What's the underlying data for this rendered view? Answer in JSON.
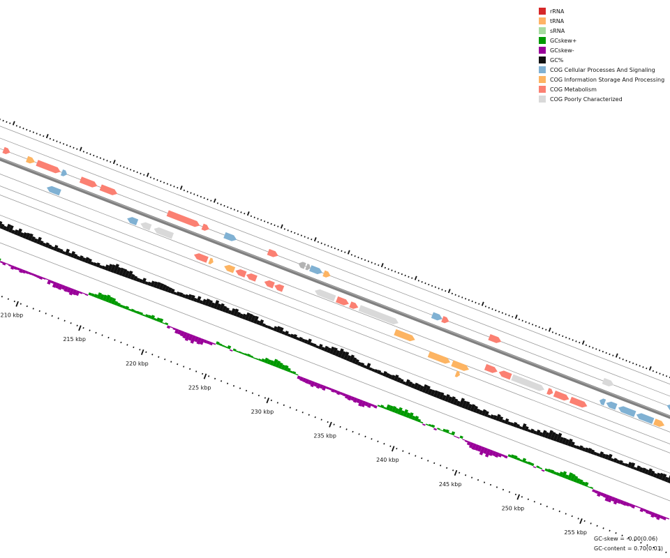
{
  "legend": [
    {
      "label": "rRNA",
      "color": "#d62728"
    },
    {
      "label": "tRNA",
      "color": "#ffb366"
    },
    {
      "label": "sRNA",
      "color": "#a6dba0"
    },
    {
      "label": "GCskew+",
      "color": "#009900"
    },
    {
      "label": "GCskew-",
      "color": "#990099"
    },
    {
      "label": "GC%",
      "color": "#111111"
    },
    {
      "label": "COG Cellular Processes And Signaling",
      "color": "#80b1d3"
    },
    {
      "label": "COG Information Storage And Processing",
      "color": "#fdb462"
    },
    {
      "label": "COG Metabolism",
      "color": "#fb8072"
    },
    {
      "label": "COG Poorly Characterized",
      "color": "#d9d9d9"
    }
  ],
  "stats": {
    "gc_skew": "GC-skew = -0.00(0.06)",
    "gc_content": "GC-content = 0.70(0.03)"
  },
  "ruler": {
    "labels": [
      "210 kbp",
      "215 kbp",
      "220 kbp",
      "225 kbp",
      "230 kbp",
      "235 kbp",
      "240 kbp",
      "245 kbp",
      "250 kbp",
      "255 kbp"
    ]
  },
  "colors": {
    "backbone": "#808080",
    "guide": "#9a9a9a",
    "gc": "#111111",
    "skew_pos": "#009900",
    "skew_neg": "#990099",
    "cog_cellular": "#80b1d3",
    "cog_info": "#fdb462",
    "cog_metab": "#fb8072",
    "cog_poor": "#d9d9d9",
    "other": "#b3b3b3"
  },
  "genes": [
    {
      "pos": 0.0,
      "track": "outer",
      "len": 0.01,
      "cog": "cog_metab",
      "dir": 1
    },
    {
      "pos": 0.035,
      "track": "outer",
      "len": 0.012,
      "cog": "cog_info",
      "dir": 1
    },
    {
      "pos": 0.05,
      "track": "outer",
      "len": 0.035,
      "cog": "cog_metab",
      "dir": 1
    },
    {
      "pos": 0.087,
      "track": "outer",
      "len": 0.008,
      "cog": "cog_cellular",
      "dir": 1
    },
    {
      "pos": 0.075,
      "track": "inner1",
      "len": 0.02,
      "cog": "cog_cellular",
      "dir": -1
    },
    {
      "pos": 0.115,
      "track": "outer",
      "len": 0.025,
      "cog": "cog_metab",
      "dir": 1
    },
    {
      "pos": 0.145,
      "track": "outer",
      "len": 0.025,
      "cog": "cog_metab",
      "dir": 1
    },
    {
      "pos": 0.195,
      "track": "inner1",
      "len": 0.015,
      "cog": "cog_cellular",
      "dir": -1
    },
    {
      "pos": 0.215,
      "track": "inner1",
      "len": 0.015,
      "cog": "cog_poor",
      "dir": -1
    },
    {
      "pos": 0.235,
      "track": "inner1",
      "len": 0.028,
      "cog": "cog_poor",
      "dir": -1
    },
    {
      "pos": 0.245,
      "track": "outer",
      "len": 0.048,
      "cog": "cog_metab",
      "dir": 1
    },
    {
      "pos": 0.297,
      "track": "outer",
      "len": 0.01,
      "cog": "cog_metab",
      "dir": 1
    },
    {
      "pos": 0.3,
      "track": "inner2",
      "len": 0.02,
      "cog": "cog_metab",
      "dir": -1
    },
    {
      "pos": 0.323,
      "track": "inner2",
      "len": 0.006,
      "cog": "cog_info",
      "dir": 1
    },
    {
      "pos": 0.33,
      "track": "outer",
      "len": 0.018,
      "cog": "cog_cellular",
      "dir": 1
    },
    {
      "pos": 0.345,
      "track": "inner2",
      "len": 0.015,
      "cog": "cog_info",
      "dir": -1
    },
    {
      "pos": 0.362,
      "track": "inner2",
      "len": 0.015,
      "cog": "cog_metab",
      "dir": -1
    },
    {
      "pos": 0.378,
      "track": "inner2",
      "len": 0.015,
      "cog": "cog_metab",
      "dir": -1
    },
    {
      "pos": 0.395,
      "track": "outer",
      "len": 0.015,
      "cog": "cog_metab",
      "dir": 1
    },
    {
      "pos": 0.405,
      "track": "inner2",
      "len": 0.014,
      "cog": "cog_metab",
      "dir": -1
    },
    {
      "pos": 0.42,
      "track": "inner2",
      "len": 0.013,
      "cog": "cog_metab",
      "dir": -1
    },
    {
      "pos": 0.44,
      "track": "outer",
      "len": 0.01,
      "cog": "other",
      "dir": -1
    },
    {
      "pos": 0.452,
      "track": "outer",
      "len": 0.006,
      "cog": "other",
      "dir": 1
    },
    {
      "pos": 0.458,
      "track": "outer",
      "len": 0.018,
      "cog": "cog_cellular",
      "dir": 1
    },
    {
      "pos": 0.478,
      "track": "outer",
      "len": 0.01,
      "cog": "cog_info",
      "dir": 1
    },
    {
      "pos": 0.475,
      "track": "inner1",
      "len": 0.03,
      "cog": "cog_poor",
      "dir": -1
    },
    {
      "pos": 0.508,
      "track": "inner1",
      "len": 0.018,
      "cog": "cog_metab",
      "dir": 1
    },
    {
      "pos": 0.528,
      "track": "inner1",
      "len": 0.012,
      "cog": "cog_metab",
      "dir": 1
    },
    {
      "pos": 0.542,
      "track": "inner1",
      "len": 0.058,
      "cog": "cog_poor",
      "dir": 1
    },
    {
      "pos": 0.6,
      "track": "inner2",
      "len": 0.03,
      "cog": "cog_info",
      "dir": 1
    },
    {
      "pos": 0.64,
      "track": "outer",
      "len": 0.015,
      "cog": "cog_cellular",
      "dir": 1
    },
    {
      "pos": 0.655,
      "track": "outer",
      "len": 0.01,
      "cog": "cog_metab",
      "dir": 1
    },
    {
      "pos": 0.655,
      "track": "inner3",
      "len": 0.032,
      "cog": "cog_info",
      "dir": 1
    },
    {
      "pos": 0.69,
      "track": "inner3",
      "len": 0.025,
      "cog": "cog_info",
      "dir": 1
    },
    {
      "pos": 0.7,
      "track": "inner4",
      "len": 0.006,
      "cog": "cog_info",
      "dir": 1
    },
    {
      "pos": 0.725,
      "track": "outer",
      "len": 0.018,
      "cog": "cog_metab",
      "dir": 1
    },
    {
      "pos": 0.735,
      "track": "inner2",
      "len": 0.018,
      "cog": "cog_metab",
      "dir": 1
    },
    {
      "pos": 0.755,
      "track": "inner2",
      "len": 0.018,
      "cog": "cog_metab",
      "dir": -1
    },
    {
      "pos": 0.775,
      "track": "inner2",
      "len": 0.048,
      "cog": "cog_poor",
      "dir": 1
    },
    {
      "pos": 0.828,
      "track": "inner2",
      "len": 0.008,
      "cog": "cog_metab",
      "dir": 1
    },
    {
      "pos": 0.838,
      "track": "inner2",
      "len": 0.022,
      "cog": "cog_metab",
      "dir": 1
    },
    {
      "pos": 0.862,
      "track": "inner2",
      "len": 0.025,
      "cog": "cog_metab",
      "dir": 1
    },
    {
      "pos": 0.895,
      "track": "outer",
      "len": 0.016,
      "cog": "cog_poor",
      "dir": 1
    },
    {
      "pos": 0.9,
      "track": "inner1",
      "len": 0.008,
      "cog": "cog_cellular",
      "dir": -1
    },
    {
      "pos": 0.91,
      "track": "inner1",
      "len": 0.015,
      "cog": "cog_cellular",
      "dir": -1
    },
    {
      "pos": 0.928,
      "track": "inner1",
      "len": 0.025,
      "cog": "cog_cellular",
      "dir": -1
    },
    {
      "pos": 0.955,
      "track": "inner1",
      "len": 0.025,
      "cog": "cog_cellular",
      "dir": -1
    },
    {
      "pos": 0.982,
      "track": "inner1",
      "len": 0.015,
      "cog": "cog_info",
      "dir": 1
    },
    {
      "pos": 0.99,
      "track": "outer",
      "len": 0.018,
      "cog": "cog_cellular",
      "dir": -1
    }
  ]
}
